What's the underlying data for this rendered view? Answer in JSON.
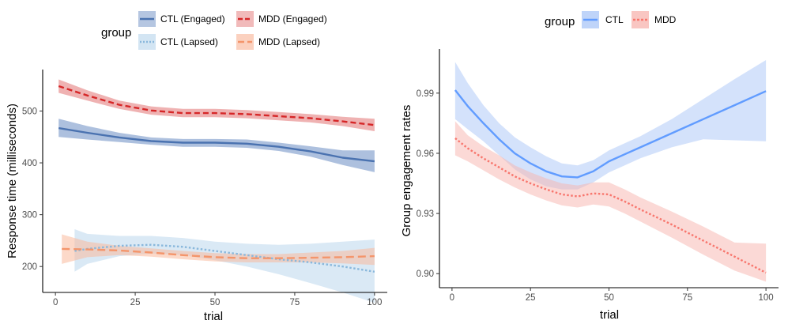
{
  "chart_data": [
    {
      "type": "line",
      "panel": "left",
      "xlabel": "trial",
      "ylabel": "Response time (milliseconds)",
      "xlim": [
        -4,
        104
      ],
      "ylim": [
        150,
        580
      ],
      "xticks": [
        0,
        25,
        50,
        75,
        100
      ],
      "yticks": [
        200,
        300,
        400,
        500
      ],
      "legend": {
        "title": "group",
        "position": "top-center"
      },
      "series": [
        {
          "name": "CTL (Engaged)",
          "color": "#4a72b0",
          "fill": "#5c81bd",
          "dash": "solid",
          "x": [
            1,
            10,
            20,
            30,
            40,
            50,
            60,
            70,
            80,
            90,
            100
          ],
          "y": [
            467,
            458,
            449,
            442,
            439,
            439,
            437,
            431,
            422,
            410,
            403
          ],
          "lower": [
            450,
            445,
            440,
            435,
            431,
            431,
            429,
            423,
            412,
            396,
            382
          ],
          "upper": [
            485,
            471,
            458,
            449,
            446,
            446,
            445,
            439,
            432,
            424,
            424
          ]
        },
        {
          "name": "MDD (Engaged)",
          "color": "#d62728",
          "fill": "#e06666",
          "dash": "dashed",
          "x": [
            1,
            10,
            20,
            30,
            40,
            50,
            60,
            70,
            80,
            90,
            100
          ],
          "y": [
            548,
            530,
            512,
            501,
            496,
            496,
            494,
            490,
            486,
            480,
            473
          ],
          "lower": [
            535,
            520,
            504,
            493,
            488,
            488,
            486,
            482,
            478,
            471,
            461
          ],
          "upper": [
            561,
            540,
            520,
            509,
            504,
            504,
            502,
            498,
            494,
            489,
            485
          ]
        },
        {
          "name": "CTL (Lapsed)",
          "color": "#8ab8dc",
          "fill": "#bcd7ec",
          "dash": "dotted",
          "x": [
            6,
            10,
            20,
            30,
            40,
            50,
            60,
            70,
            80,
            90,
            100
          ],
          "y": [
            230,
            234,
            240,
            242,
            238,
            230,
            222,
            214,
            208,
            200,
            190
          ],
          "lower": [
            190,
            205,
            220,
            225,
            222,
            212,
            200,
            185,
            168,
            150,
            130
          ],
          "upper": [
            272,
            263,
            259,
            259,
            255,
            248,
            244,
            242,
            244,
            248,
            252
          ]
        },
        {
          "name": "MDD (Lapsed)",
          "color": "#f4956b",
          "fill": "#f9b99c",
          "dash": "longdash",
          "x": [
            2,
            10,
            20,
            30,
            40,
            50,
            60,
            70,
            80,
            90,
            100
          ],
          "y": [
            234,
            233,
            231,
            227,
            222,
            218,
            216,
            216,
            217,
            218,
            220
          ],
          "lower": [
            205,
            218,
            222,
            219,
            214,
            210,
            208,
            208,
            208,
            206,
            203
          ],
          "upper": [
            262,
            248,
            240,
            235,
            230,
            226,
            224,
            224,
            227,
            230,
            236
          ]
        }
      ]
    },
    {
      "type": "line",
      "panel": "right",
      "xlabel": "trial",
      "ylabel": "Group engagement rates",
      "xlim": [
        -4,
        104
      ],
      "ylim": [
        0.893,
        1.012
      ],
      "xticks": [
        0,
        25,
        50,
        75,
        100
      ],
      "yticks": [
        0.9,
        0.93,
        0.96,
        0.99
      ],
      "ytick_labels": [
        "0.90",
        "0.93",
        "0.96",
        "0.99"
      ],
      "legend": {
        "title": "group",
        "position": "top-center"
      },
      "series": [
        {
          "name": "CTL",
          "color": "#619cff",
          "fill": "#a9c6f7",
          "dash": "solid",
          "x": [
            1,
            5,
            10,
            15,
            20,
            25,
            30,
            35,
            40,
            45,
            50,
            55,
            60,
            70,
            80,
            90,
            100
          ],
          "y": [
            0.9915,
            0.9835,
            0.975,
            0.967,
            0.96,
            0.955,
            0.951,
            0.9485,
            0.948,
            0.951,
            0.956,
            0.9595,
            0.963,
            0.97,
            0.977,
            0.984,
            0.991
          ],
          "lower": [
            0.977,
            0.972,
            0.966,
            0.959,
            0.952,
            0.947,
            0.9435,
            0.942,
            0.942,
            0.9455,
            0.9505,
            0.954,
            0.9575,
            0.963,
            0.967,
            0.9665,
            0.966
          ],
          "upper": [
            1.0055,
            0.995,
            0.984,
            0.975,
            0.968,
            0.963,
            0.9585,
            0.955,
            0.954,
            0.9565,
            0.9615,
            0.965,
            0.9685,
            0.977,
            0.987,
            0.997,
            1.0065
          ]
        },
        {
          "name": "MDD",
          "color": "#f8766d",
          "fill": "#f7b3ad",
          "dash": "dotted",
          "x": [
            1,
            5,
            10,
            15,
            20,
            25,
            30,
            35,
            40,
            45,
            50,
            55,
            60,
            70,
            80,
            90,
            100
          ],
          "y": [
            0.9675,
            0.9625,
            0.9575,
            0.953,
            0.9485,
            0.945,
            0.942,
            0.9395,
            0.9385,
            0.94,
            0.9395,
            0.936,
            0.932,
            0.9245,
            0.9165,
            0.9085,
            0.9005
          ],
          "lower": [
            0.959,
            0.956,
            0.9515,
            0.947,
            0.943,
            0.9395,
            0.9365,
            0.934,
            0.933,
            0.9345,
            0.9335,
            0.93,
            0.926,
            0.918,
            0.9095,
            0.9015,
            0.896
          ],
          "upper": [
            0.976,
            0.969,
            0.9635,
            0.959,
            0.954,
            0.9505,
            0.9475,
            0.945,
            0.944,
            0.9455,
            0.9455,
            0.942,
            0.938,
            0.931,
            0.9235,
            0.9155,
            0.915
          ]
        }
      ]
    }
  ]
}
